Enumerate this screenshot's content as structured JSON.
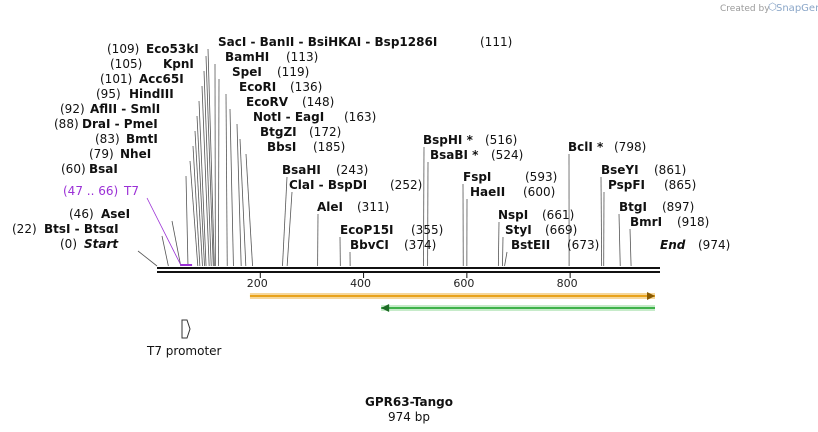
{
  "credit": {
    "prefix": "Created by",
    "brand": "SnapGene"
  },
  "map": {
    "title": "GPR63-Tango",
    "length_label": "974 bp",
    "length_bp": 974
  },
  "ruler_ticks": [
    "200",
    "400",
    "600",
    "800"
  ],
  "features": [
    {
      "name": "T7 promoter",
      "start": 47,
      "end": 66
    }
  ],
  "arrows": [
    {
      "name": "orange",
      "from": 180,
      "to": 974
    },
    {
      "name": "green",
      "from": 434,
      "to": 974
    }
  ],
  "sites": [
    {
      "id": "start",
      "pos": "(0)",
      "name": "Start",
      "bp": 0
    },
    {
      "id": "btsi",
      "pos": "(22)",
      "name": "BtsI - BtsαI",
      "bp": 22
    },
    {
      "id": "asei",
      "pos": "(46)",
      "name": "AseI",
      "bp": 46
    },
    {
      "id": "t7",
      "pos": "(47 .. 66)",
      "name": "T7",
      "bp": 47
    },
    {
      "id": "bsai",
      "pos": "(60)",
      "name": "BsaI",
      "bp": 60
    },
    {
      "id": "nhei",
      "pos": "(79)",
      "name": "NheI",
      "bp": 79
    },
    {
      "id": "bmti",
      "pos": "(83)",
      "name": "BmtI",
      "bp": 83
    },
    {
      "id": "drai",
      "pos": "(88)",
      "name": "DraI - PmeI",
      "bp": 88
    },
    {
      "id": "aflii",
      "pos": "(92)",
      "name": "AflII - SmlI",
      "bp": 92
    },
    {
      "id": "hindiii",
      "pos": "(95)",
      "name": "HindIII",
      "bp": 95
    },
    {
      "id": "acc65i",
      "pos": "(101)",
      "name": "Acc65I",
      "bp": 101
    },
    {
      "id": "kpni",
      "pos": "(105)",
      "name": "KpnI",
      "bp": 105
    },
    {
      "id": "eco53ki",
      "pos": "(109)",
      "name": "Eco53kI",
      "bp": 109
    },
    {
      "id": "saci",
      "pos": "(111)",
      "name": "SacI - BanII - BsiHKAI - Bsp1286I",
      "bp": 111
    },
    {
      "id": "bamhi",
      "pos": "(113)",
      "name": "BamHI",
      "bp": 113
    },
    {
      "id": "spei",
      "pos": "(119)",
      "name": "SpeI",
      "bp": 119
    },
    {
      "id": "ecori",
      "pos": "(136)",
      "name": "EcoRI",
      "bp": 136
    },
    {
      "id": "ecorv",
      "pos": "(148)",
      "name": "EcoRV",
      "bp": 148
    },
    {
      "id": "noti",
      "pos": "(163)",
      "name": "NotI - EagI",
      "bp": 163
    },
    {
      "id": "btgzi",
      "pos": "(172)",
      "name": "BtgZI",
      "bp": 172
    },
    {
      "id": "bbsi",
      "pos": "(185)",
      "name": "BbsI",
      "bp": 185
    },
    {
      "id": "bsahi",
      "pos": "(243)",
      "name": "BsaHI",
      "bp": 243
    },
    {
      "id": "clai",
      "pos": "(252)",
      "name": "ClaI - BspDI",
      "bp": 252
    },
    {
      "id": "alei",
      "pos": "(311)",
      "name": "AleI",
      "bp": 311
    },
    {
      "id": "ecop15i",
      "pos": "(355)",
      "name": "EcoP15I",
      "bp": 355
    },
    {
      "id": "bbvci",
      "pos": "(374)",
      "name": "BbvCI",
      "bp": 374
    },
    {
      "id": "bsphi",
      "pos": "(516)",
      "name": "BspHI *",
      "bp": 516
    },
    {
      "id": "bsabi",
      "pos": "(524)",
      "name": "BsaBI *",
      "bp": 524
    },
    {
      "id": "fspi",
      "pos": "(593)",
      "name": "FspI",
      "bp": 593
    },
    {
      "id": "haeii",
      "pos": "(600)",
      "name": "HaeII",
      "bp": 600
    },
    {
      "id": "nspi",
      "pos": "(661)",
      "name": "NspI",
      "bp": 661
    },
    {
      "id": "styi",
      "pos": "(669)",
      "name": "StyI",
      "bp": 669
    },
    {
      "id": "bsteii",
      "pos": "(673)",
      "name": "BstEII",
      "bp": 673
    },
    {
      "id": "bcli",
      "pos": "(798)",
      "name": "BclI *",
      "bp": 798
    },
    {
      "id": "bseyi",
      "pos": "(861)",
      "name": "BseYI",
      "bp": 861
    },
    {
      "id": "pspfi",
      "pos": "(865)",
      "name": "PspFI",
      "bp": 865
    },
    {
      "id": "btgi",
      "pos": "(897)",
      "name": "BtgI",
      "bp": 897
    },
    {
      "id": "bmri",
      "pos": "(918)",
      "name": "BmrI",
      "bp": 918
    },
    {
      "id": "end",
      "pos": "(974)",
      "name": "End",
      "bp": 974
    }
  ],
  "colors": {
    "orange": "#e8a21a",
    "green": "#3fb24a",
    "purple": "#9b30d6",
    "line": "#111111"
  }
}
